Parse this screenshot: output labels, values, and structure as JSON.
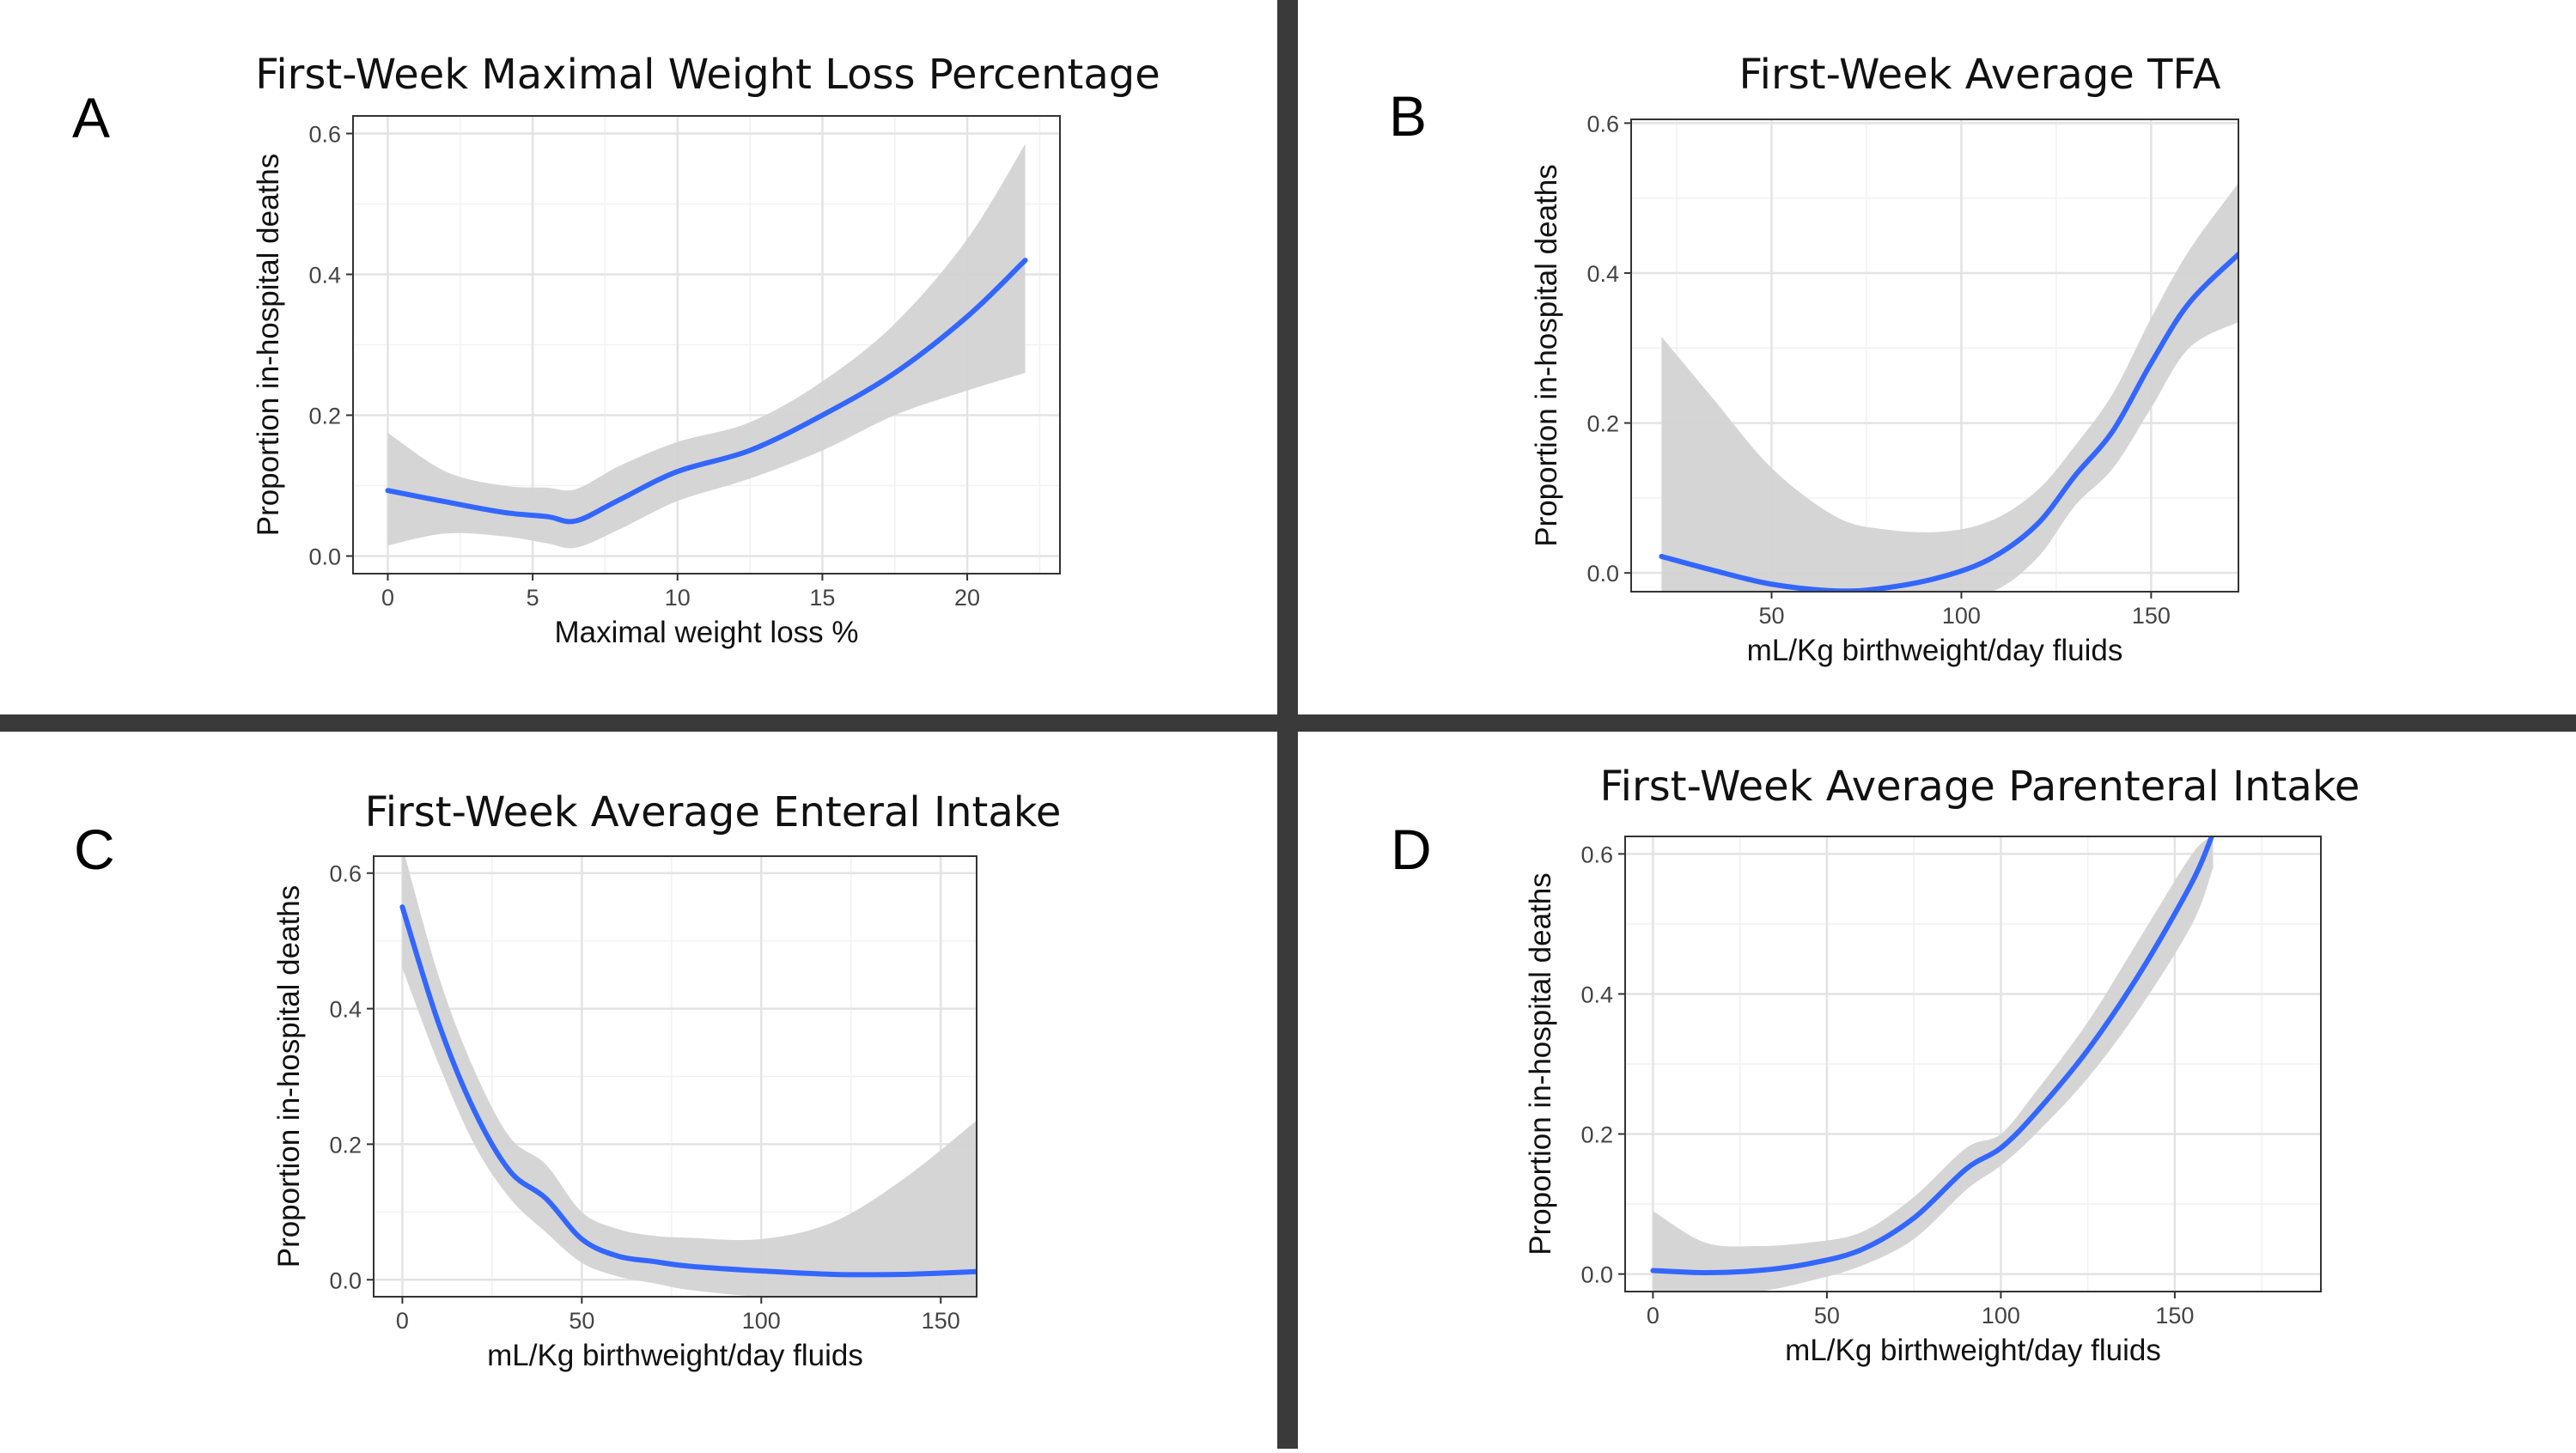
{
  "figure": {
    "panels": [
      {
        "letter": "A",
        "title": "First-Week Maximal Weight Loss Percentage"
      },
      {
        "letter": "B",
        "title": "First-Week Average TFA"
      },
      {
        "letter": "C",
        "title": "First-Week Average Enteral Intake"
      },
      {
        "letter": "D",
        "title": "First-Week Average Parenteral Intake"
      }
    ]
  },
  "chart_data": [
    {
      "type": "line",
      "title": "First-Week Maximal Weight Loss Percentage",
      "xlabel": "Maximal weight loss %",
      "ylabel": "Proportion in-hospital deaths",
      "xlim": [
        -1.2,
        23.2
      ],
      "ylim": [
        -0.025,
        0.625
      ],
      "xticks": [
        0,
        5,
        10,
        15,
        20
      ],
      "yticks": [
        0.0,
        0.2,
        0.4,
        0.6
      ],
      "grid": true,
      "series": [
        {
          "color": "#3366ff",
          "ci_color": "#d3d3d3",
          "x": [
            0,
            2,
            4,
            5.5,
            6.5,
            8,
            10,
            12.5,
            15,
            17.5,
            20,
            22
          ],
          "y": [
            0.093,
            0.077,
            0.062,
            0.056,
            0.05,
            0.08,
            0.12,
            0.15,
            0.2,
            0.26,
            0.34,
            0.42
          ],
          "ci_upper": [
            0.175,
            0.12,
            0.1,
            0.097,
            0.095,
            0.128,
            0.162,
            0.19,
            0.248,
            0.33,
            0.45,
            0.585
          ],
          "ci_lower": [
            0.015,
            0.032,
            0.028,
            0.018,
            0.012,
            0.038,
            0.078,
            0.11,
            0.15,
            0.2,
            0.235,
            0.26
          ]
        }
      ]
    },
    {
      "type": "line",
      "title": "First-Week Average TFA",
      "xlabel": "mL/Kg birthweight/day fluids",
      "ylabel": "Proportion in-hospital deaths",
      "xlim": [
        13,
        173
      ],
      "ylim": [
        -0.025,
        0.605
      ],
      "xticks": [
        50,
        100,
        150
      ],
      "yticks": [
        0.0,
        0.2,
        0.4,
        0.6
      ],
      "grid": true,
      "series": [
        {
          "color": "#3366ff",
          "ci_color": "#d3d3d3",
          "x": [
            21,
            35,
            50,
            67,
            80,
            95,
            108,
            120,
            130,
            140,
            150,
            160,
            173
          ],
          "y": [
            0.022,
            0.003,
            -0.015,
            -0.024,
            -0.02,
            -0.005,
            0.02,
            0.065,
            0.13,
            0.19,
            0.28,
            0.36,
            0.425
          ],
          "ci_upper": [
            0.315,
            0.23,
            0.14,
            0.075,
            0.058,
            0.055,
            0.07,
            0.11,
            0.17,
            0.24,
            0.34,
            0.43,
            0.52
          ],
          "ci_lower": [
            -0.025,
            -0.025,
            -0.025,
            -0.025,
            -0.025,
            -0.025,
            -0.025,
            0.02,
            0.09,
            0.14,
            0.22,
            0.3,
            0.335
          ]
        }
      ]
    },
    {
      "type": "line",
      "title": "First-Week Average Enteral Intake",
      "xlabel": "mL/Kg birthweight/day fluids",
      "ylabel": "Proportion in-hospital deaths",
      "xlim": [
        -8,
        160
      ],
      "ylim": [
        -0.025,
        0.625
      ],
      "xticks": [
        0,
        50,
        100,
        150
      ],
      "yticks": [
        0.0,
        0.2,
        0.4,
        0.6
      ],
      "grid": true,
      "series": [
        {
          "color": "#3366ff",
          "ci_color": "#d3d3d3",
          "x": [
            0,
            10,
            20,
            30,
            40,
            50,
            60,
            70,
            80,
            100,
            120,
            140,
            160
          ],
          "y": [
            0.55,
            0.38,
            0.25,
            0.16,
            0.12,
            0.06,
            0.035,
            0.027,
            0.02,
            0.013,
            0.008,
            0.008,
            0.012
          ],
          "ci_upper": [
            0.64,
            0.45,
            0.31,
            0.21,
            0.17,
            0.1,
            0.075,
            0.065,
            0.062,
            0.06,
            0.085,
            0.15,
            0.235
          ],
          "ci_lower": [
            0.46,
            0.32,
            0.2,
            0.12,
            0.07,
            0.025,
            0.005,
            -0.005,
            -0.015,
            -0.025,
            -0.025,
            -0.025,
            -0.025
          ]
        }
      ]
    },
    {
      "type": "line",
      "title": "First-Week Average Parenteral Intake",
      "xlabel": "mL/Kg birthweight/day fluids",
      "ylabel": "Proportion in-hospital deaths",
      "xlim": [
        -8,
        192
      ],
      "ylim": [
        -0.025,
        0.625
      ],
      "xticks": [
        0,
        50,
        100,
        150
      ],
      "yticks": [
        0.0,
        0.2,
        0.4,
        0.6
      ],
      "grid": true,
      "series": [
        {
          "color": "#3366ff",
          "ci_color": "#d3d3d3",
          "x": [
            0,
            15,
            30,
            45,
            60,
            75,
            90,
            100,
            110,
            125,
            140,
            155,
            161
          ],
          "y": [
            0.005,
            0.002,
            0.005,
            0.015,
            0.035,
            0.08,
            0.15,
            0.18,
            0.23,
            0.32,
            0.43,
            0.56,
            0.63
          ],
          "ci_upper": [
            0.09,
            0.045,
            0.04,
            0.045,
            0.06,
            0.11,
            0.18,
            0.2,
            0.26,
            0.36,
            0.48,
            0.6,
            0.625
          ],
          "ci_lower": [
            -0.025,
            -0.025,
            -0.025,
            -0.01,
            0.012,
            0.05,
            0.12,
            0.155,
            0.2,
            0.28,
            0.38,
            0.5,
            0.58
          ]
        }
      ]
    }
  ]
}
